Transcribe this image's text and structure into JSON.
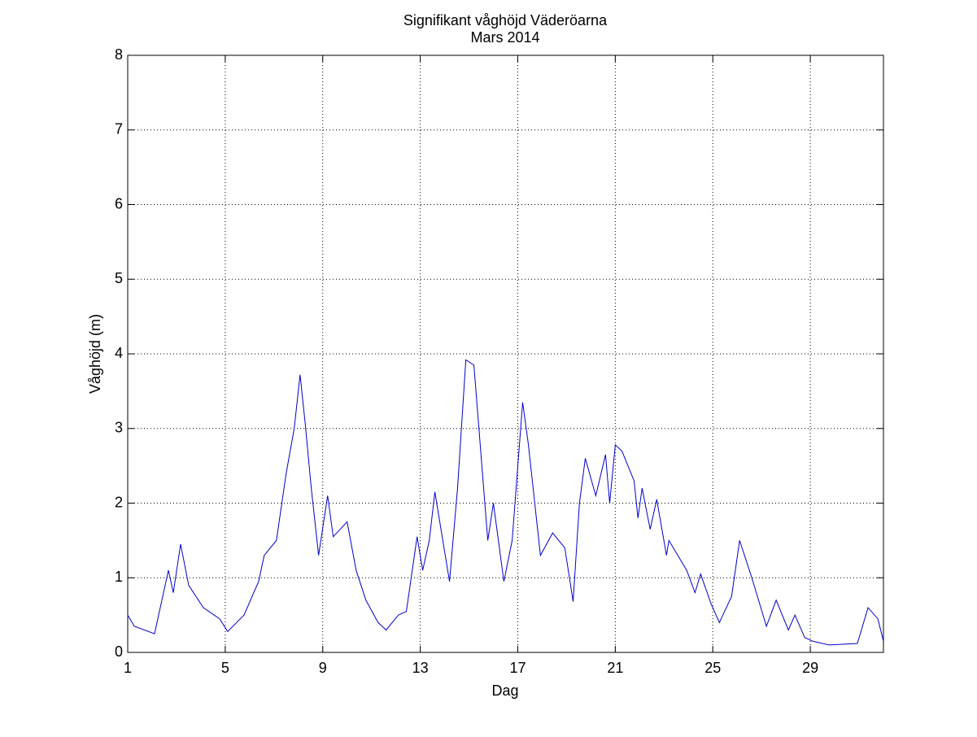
{
  "chart_data": {
    "type": "line",
    "title": "Signifikant våghöjd Väderöarna",
    "subtitle": "Mars 2014",
    "x_label": "Dag",
    "y_label": "Våghöjd (m)",
    "xlim": [
      1,
      32
    ],
    "ylim": [
      0,
      8
    ],
    "xticks": [
      1,
      5,
      9,
      13,
      17,
      21,
      25,
      29
    ],
    "yticks": [
      0,
      1,
      2,
      3,
      4,
      5,
      6,
      7,
      8
    ],
    "grid": true,
    "series": [
      {
        "color": "#0000cc",
        "x": [
          1,
          1.27,
          2.1,
          2.67,
          2.87,
          3.17,
          3.5,
          4.1,
          4.77,
          5.1,
          5.77,
          6.37,
          6.6,
          7.1,
          7.5,
          7.83,
          8.07,
          8.27,
          8.53,
          8.83,
          9.2,
          9.43,
          10.0,
          10.37,
          10.77,
          11.27,
          11.6,
          12.1,
          12.43,
          12.87,
          13.1,
          13.37,
          13.6,
          14.2,
          14.53,
          14.87,
          15.2,
          15.77,
          16.0,
          16.43,
          16.77,
          17.2,
          17.43,
          17.93,
          18.43,
          18.93,
          19.27,
          19.53,
          19.77,
          20.2,
          20.6,
          20.77,
          21.0,
          21.27,
          21.77,
          21.93,
          22.1,
          22.43,
          22.7,
          23.1,
          23.2,
          23.93,
          24.27,
          24.5,
          24.93,
          25.27,
          25.77,
          26.1,
          26.6,
          27.2,
          27.6,
          28.1,
          28.37,
          28.77,
          29.1,
          29.77,
          30.93,
          31.37,
          31.77,
          32
        ],
        "values": [
          0.5,
          0.35,
          0.25,
          1.1,
          0.8,
          1.45,
          0.9,
          0.6,
          0.45,
          0.28,
          0.5,
          0.95,
          1.3,
          1.5,
          2.4,
          3.0,
          3.72,
          3.1,
          2.2,
          1.3,
          2.1,
          1.55,
          1.75,
          1.1,
          0.7,
          0.4,
          0.3,
          0.5,
          0.55,
          1.55,
          1.1,
          1.5,
          2.15,
          0.95,
          2.2,
          3.92,
          3.85,
          1.5,
          2.0,
          0.95,
          1.5,
          3.35,
          2.8,
          1.3,
          1.6,
          1.4,
          0.68,
          2.0,
          2.6,
          2.1,
          2.65,
          2.0,
          2.78,
          2.7,
          2.3,
          1.8,
          2.2,
          1.65,
          2.05,
          1.3,
          1.5,
          1.1,
          0.8,
          1.05,
          0.65,
          0.4,
          0.75,
          1.5,
          1.0,
          0.35,
          0.7,
          0.3,
          0.5,
          0.2,
          0.15,
          0.1,
          0.12,
          0.6,
          0.45,
          0.15
        ]
      }
    ]
  }
}
